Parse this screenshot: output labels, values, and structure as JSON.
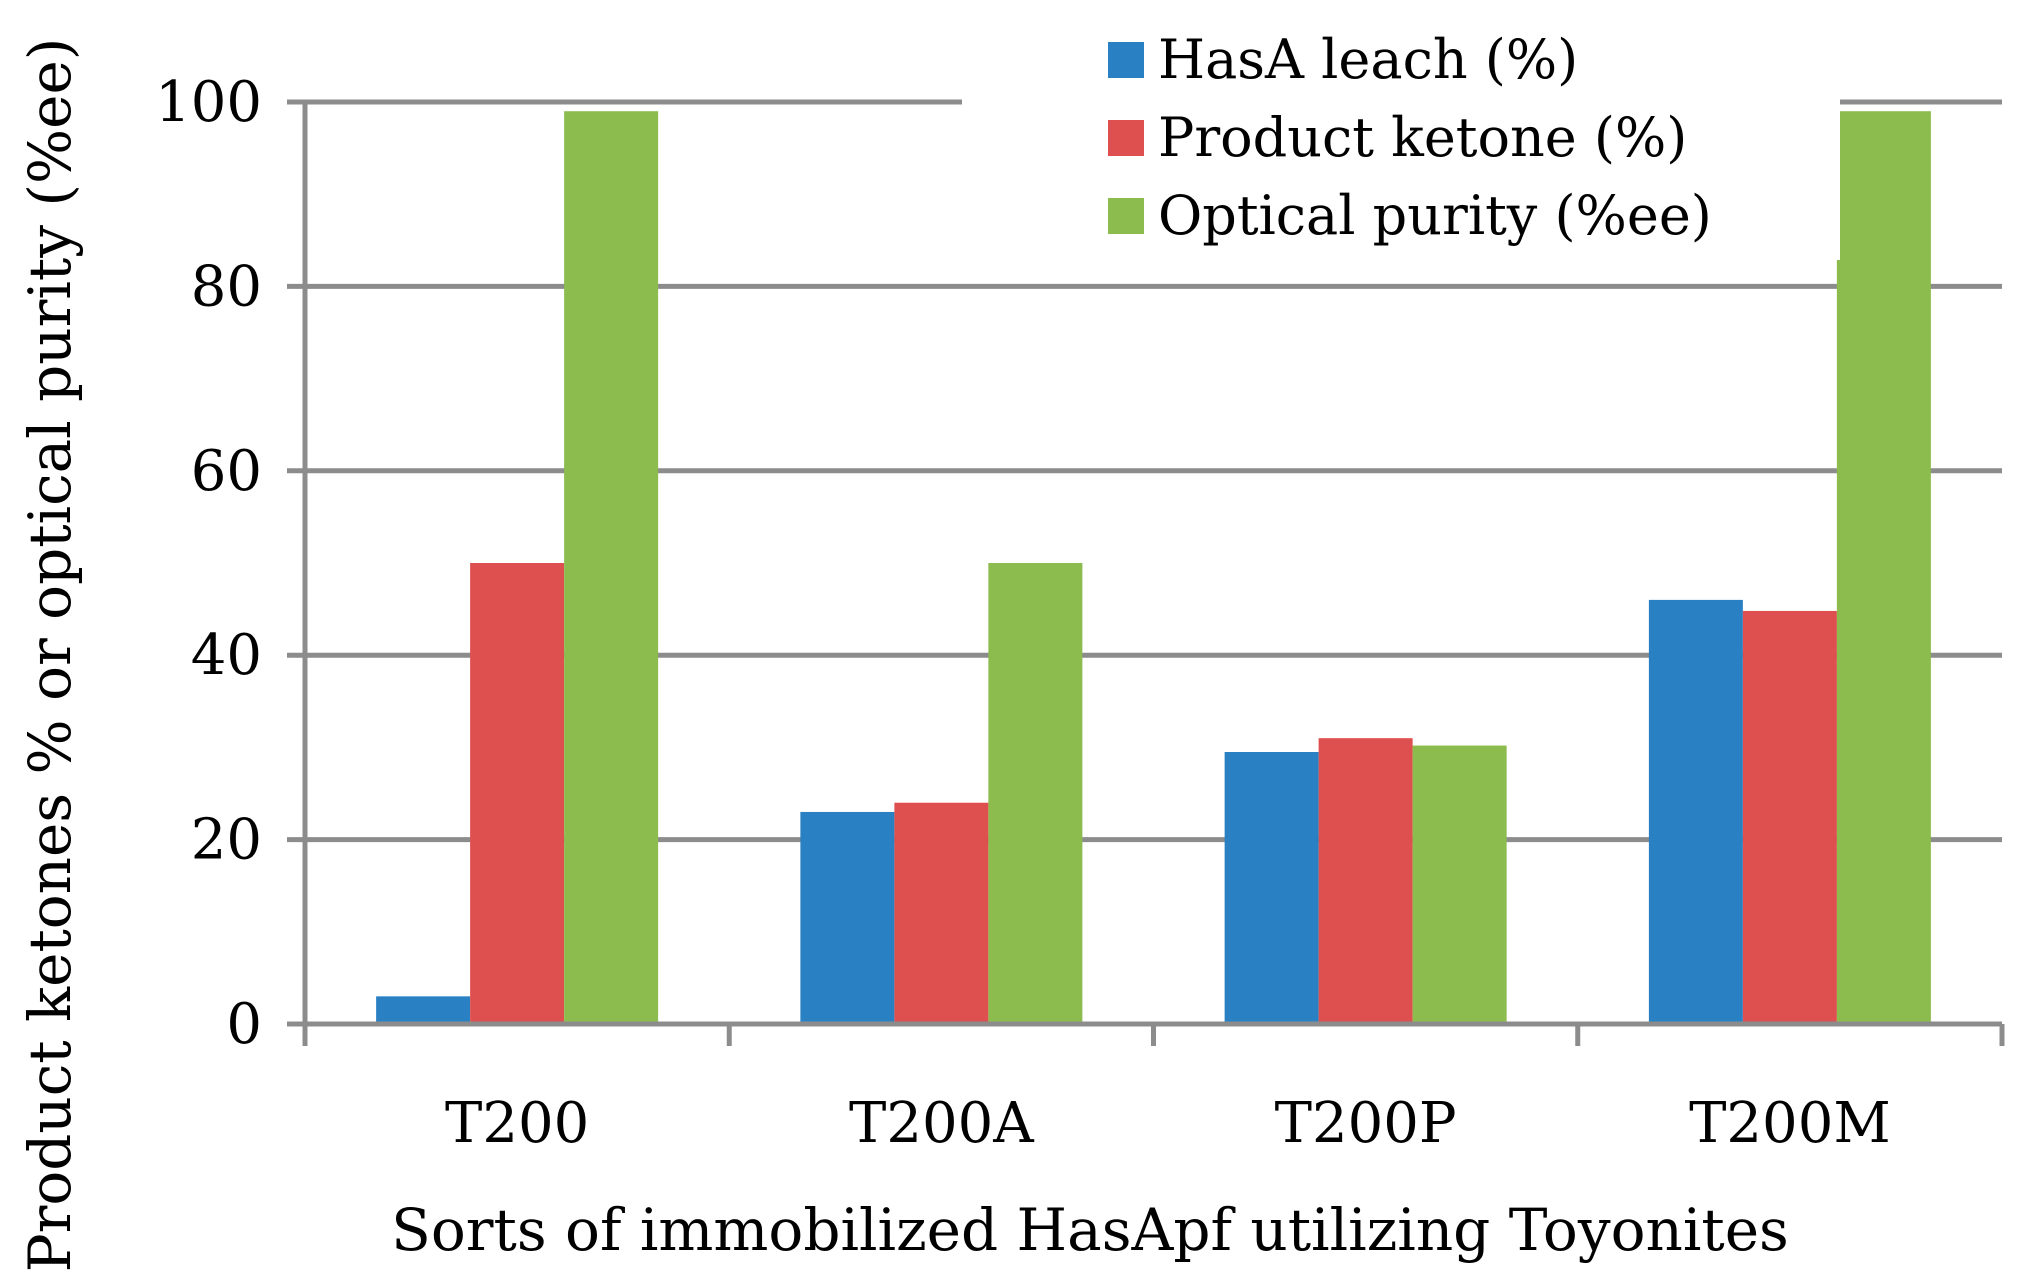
{
  "chart_data": {
    "type": "bar",
    "title": "",
    "xlabel": "Sorts of immobilized HasApf utilizing Toyonites",
    "ylabel": "Product ketones % or optical purity (%ee)",
    "ylim": [
      0,
      100
    ],
    "yticks": [
      0,
      20,
      40,
      60,
      80,
      100
    ],
    "grid": true,
    "legend_position": "top-right",
    "categories": [
      "T200",
      "T200A",
      "T200P",
      "T200M"
    ],
    "series": [
      {
        "name": "HasA leach (%)",
        "color": "#2980c2",
        "values": [
          3,
          23,
          29.5,
          46
        ]
      },
      {
        "name": "Product ketone (%)",
        "color": "#de4f4f",
        "values": [
          50,
          24,
          31,
          44.8
        ]
      },
      {
        "name": "Optical purity (%ee)",
        "color": "#8cbb4e",
        "values": [
          99,
          50,
          30.2,
          99
        ]
      }
    ]
  }
}
